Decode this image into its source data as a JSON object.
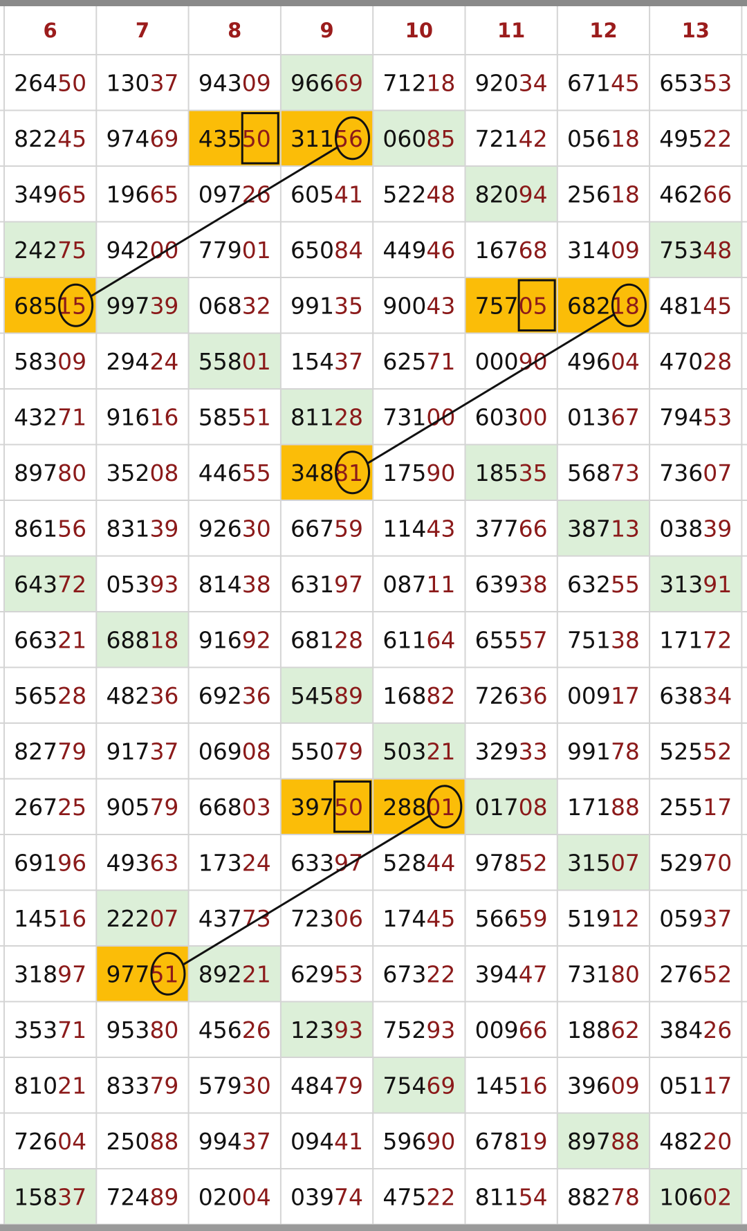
{
  "table": {
    "header": [
      "6",
      "7",
      "8",
      "9",
      "10",
      "11",
      "12",
      "13"
    ],
    "rows": [
      [
        [
          "264",
          "50"
        ],
        [
          "130",
          "37"
        ],
        [
          "943",
          "09"
        ],
        [
          "966",
          "69"
        ],
        [
          "712",
          "18"
        ],
        [
          "920",
          "34"
        ],
        [
          "671",
          "45"
        ],
        [
          "653",
          "53"
        ]
      ],
      [
        [
          "822",
          "45"
        ],
        [
          "974",
          "69"
        ],
        [
          "435",
          "50"
        ],
        [
          "311",
          "56"
        ],
        [
          "060",
          "85"
        ],
        [
          "721",
          "42"
        ],
        [
          "056",
          "18"
        ],
        [
          "495",
          "22"
        ]
      ],
      [
        [
          "349",
          "65"
        ],
        [
          "196",
          "65"
        ],
        [
          "097",
          "26"
        ],
        [
          "605",
          "41"
        ],
        [
          "522",
          "48"
        ],
        [
          "820",
          "94"
        ],
        [
          "256",
          "18"
        ],
        [
          "462",
          "66"
        ]
      ],
      [
        [
          "242",
          "75"
        ],
        [
          "942",
          "00"
        ],
        [
          "779",
          "01"
        ],
        [
          "650",
          "84"
        ],
        [
          "449",
          "46"
        ],
        [
          "167",
          "68"
        ],
        [
          "314",
          "09"
        ],
        [
          "753",
          "48"
        ]
      ],
      [
        [
          "685",
          "15"
        ],
        [
          "997",
          "39"
        ],
        [
          "068",
          "32"
        ],
        [
          "991",
          "35"
        ],
        [
          "900",
          "43"
        ],
        [
          "757",
          "05"
        ],
        [
          "682",
          "18"
        ],
        [
          "481",
          "45"
        ]
      ],
      [
        [
          "583",
          "09"
        ],
        [
          "294",
          "24"
        ],
        [
          "558",
          "01"
        ],
        [
          "154",
          "37"
        ],
        [
          "625",
          "71"
        ],
        [
          "000",
          "90"
        ],
        [
          "496",
          "04"
        ],
        [
          "470",
          "28"
        ]
      ],
      [
        [
          "432",
          "71"
        ],
        [
          "916",
          "16"
        ],
        [
          "585",
          "51"
        ],
        [
          "811",
          "28"
        ],
        [
          "731",
          "00"
        ],
        [
          "603",
          "00"
        ],
        [
          "013",
          "67"
        ],
        [
          "794",
          "53"
        ]
      ],
      [
        [
          "897",
          "80"
        ],
        [
          "352",
          "08"
        ],
        [
          "446",
          "55"
        ],
        [
          "348",
          "81"
        ],
        [
          "175",
          "90"
        ],
        [
          "185",
          "35"
        ],
        [
          "568",
          "73"
        ],
        [
          "736",
          "07"
        ]
      ],
      [
        [
          "861",
          "56"
        ],
        [
          "831",
          "39"
        ],
        [
          "926",
          "30"
        ],
        [
          "667",
          "59"
        ],
        [
          "114",
          "43"
        ],
        [
          "377",
          "66"
        ],
        [
          "387",
          "13"
        ],
        [
          "038",
          "39"
        ]
      ],
      [
        [
          "643",
          "72"
        ],
        [
          "053",
          "93"
        ],
        [
          "814",
          "38"
        ],
        [
          "631",
          "97"
        ],
        [
          "087",
          "11"
        ],
        [
          "639",
          "38"
        ],
        [
          "632",
          "55"
        ],
        [
          "313",
          "91"
        ]
      ],
      [
        [
          "663",
          "21"
        ],
        [
          "688",
          "18"
        ],
        [
          "916",
          "92"
        ],
        [
          "681",
          "28"
        ],
        [
          "611",
          "64"
        ],
        [
          "655",
          "57"
        ],
        [
          "751",
          "38"
        ],
        [
          "171",
          "72"
        ]
      ],
      [
        [
          "565",
          "28"
        ],
        [
          "482",
          "36"
        ],
        [
          "692",
          "36"
        ],
        [
          "545",
          "89"
        ],
        [
          "168",
          "82"
        ],
        [
          "726",
          "36"
        ],
        [
          "009",
          "17"
        ],
        [
          "638",
          "34"
        ]
      ],
      [
        [
          "827",
          "79"
        ],
        [
          "917",
          "37"
        ],
        [
          "069",
          "08"
        ],
        [
          "550",
          "79"
        ],
        [
          "503",
          "21"
        ],
        [
          "329",
          "33"
        ],
        [
          "991",
          "78"
        ],
        [
          "525",
          "52"
        ]
      ],
      [
        [
          "267",
          "25"
        ],
        [
          "905",
          "79"
        ],
        [
          "668",
          "03"
        ],
        [
          "397",
          "50"
        ],
        [
          "288",
          "01"
        ],
        [
          "017",
          "08"
        ],
        [
          "171",
          "88"
        ],
        [
          "255",
          "17"
        ]
      ],
      [
        [
          "691",
          "96"
        ],
        [
          "493",
          "63"
        ],
        [
          "173",
          "24"
        ],
        [
          "633",
          "97"
        ],
        [
          "528",
          "44"
        ],
        [
          "978",
          "52"
        ],
        [
          "315",
          "07"
        ],
        [
          "529",
          "70"
        ]
      ],
      [
        [
          "145",
          "16"
        ],
        [
          "222",
          "07"
        ],
        [
          "437",
          "73"
        ],
        [
          "723",
          "06"
        ],
        [
          "174",
          "45"
        ],
        [
          "566",
          "59"
        ],
        [
          "519",
          "12"
        ],
        [
          "059",
          "37"
        ]
      ],
      [
        [
          "318",
          "97"
        ],
        [
          "977",
          "51"
        ],
        [
          "892",
          "21"
        ],
        [
          "629",
          "53"
        ],
        [
          "673",
          "22"
        ],
        [
          "394",
          "47"
        ],
        [
          "731",
          "80"
        ],
        [
          "276",
          "52"
        ]
      ],
      [
        [
          "353",
          "71"
        ],
        [
          "953",
          "80"
        ],
        [
          "456",
          "26"
        ],
        [
          "123",
          "93"
        ],
        [
          "752",
          "93"
        ],
        [
          "009",
          "66"
        ],
        [
          "188",
          "62"
        ],
        [
          "384",
          "26"
        ]
      ],
      [
        [
          "810",
          "21"
        ],
        [
          "833",
          "79"
        ],
        [
          "579",
          "30"
        ],
        [
          "484",
          "79"
        ],
        [
          "754",
          "69"
        ],
        [
          "145",
          "16"
        ],
        [
          "396",
          "09"
        ],
        [
          "051",
          "17"
        ]
      ],
      [
        [
          "726",
          "04"
        ],
        [
          "250",
          "88"
        ],
        [
          "994",
          "37"
        ],
        [
          "094",
          "41"
        ],
        [
          "596",
          "90"
        ],
        [
          "678",
          "19"
        ],
        [
          "897",
          "88"
        ],
        [
          "482",
          "20"
        ]
      ],
      [
        [
          "158",
          "37"
        ],
        [
          "724",
          "89"
        ],
        [
          "020",
          "04"
        ],
        [
          "039",
          "74"
        ],
        [
          "475",
          "22"
        ],
        [
          "811",
          "54"
        ],
        [
          "882",
          "78"
        ],
        [
          "106",
          "02"
        ]
      ]
    ]
  }
}
